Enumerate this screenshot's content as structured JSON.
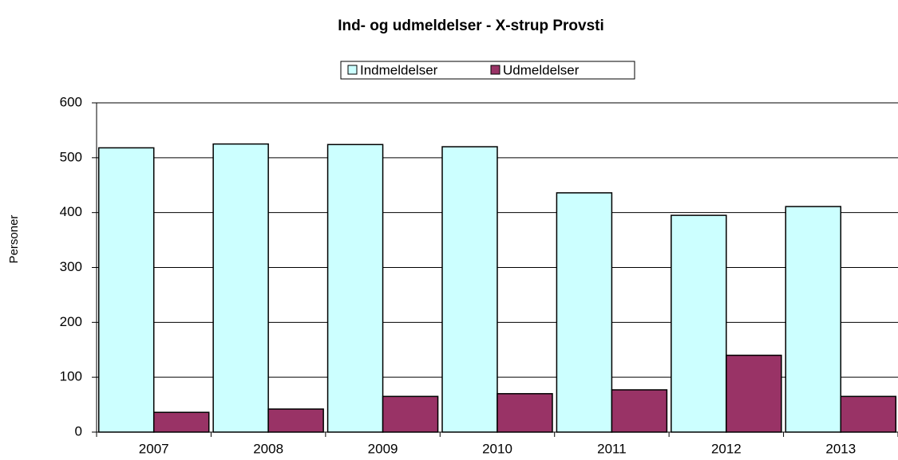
{
  "chart_data": {
    "type": "bar",
    "title": "Ind- og udmeldelser - X-strup Provsti",
    "y_label": "Personer",
    "categories": [
      "2007",
      "2008",
      "2009",
      "2010",
      "2011",
      "2012",
      "2013"
    ],
    "series": [
      {
        "name": "Indmeldelser",
        "color": "#ccffff",
        "values": [
          518,
          525,
          524,
          520,
          436,
          395,
          411
        ]
      },
      {
        "name": "Udmeldelser",
        "color": "#993366",
        "values": [
          36,
          42,
          65,
          70,
          77,
          140,
          65
        ]
      }
    ],
    "ylim": [
      0,
      600
    ],
    "yticks": [
      0,
      100,
      200,
      300,
      400,
      500,
      600
    ],
    "grid": true,
    "legend": "top"
  }
}
